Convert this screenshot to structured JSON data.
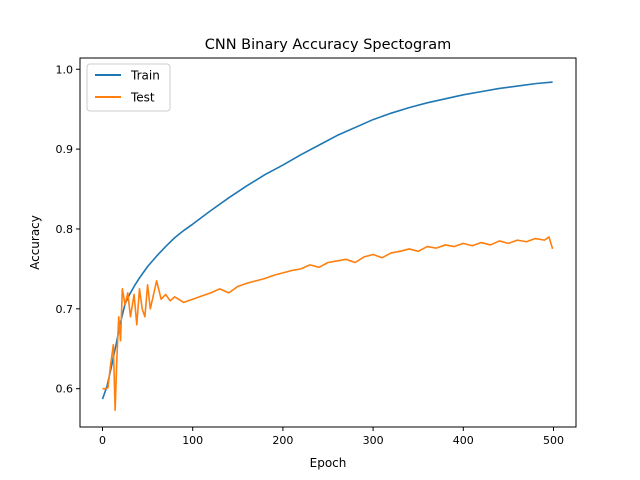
{
  "chart_data": {
    "type": "line",
    "title": "CNN Binary Accuracy Spectogram",
    "xlabel": "Epoch",
    "ylabel": "Accuracy",
    "xlim": [
      -24.95,
      524.95
    ],
    "ylim": [
      0.552,
      1.0141
    ],
    "xticks": [
      0,
      100,
      200,
      300,
      400,
      500
    ],
    "yticks": [
      0.6,
      0.7,
      0.8,
      0.9,
      1.0
    ],
    "ytick_labels": [
      "0.6",
      "0.7",
      "0.8",
      "0.9",
      "1.0"
    ],
    "grid": false,
    "legend_position": "top-left",
    "series": [
      {
        "name": "Train",
        "color": "#1f77b4",
        "x": [
          0,
          5,
          10,
          15,
          20,
          25,
          30,
          35,
          40,
          45,
          50,
          60,
          70,
          80,
          90,
          100,
          120,
          140,
          160,
          180,
          200,
          220,
          240,
          260,
          280,
          300,
          320,
          340,
          360,
          380,
          400,
          420,
          440,
          460,
          480,
          499
        ],
        "y": [
          0.587,
          0.603,
          0.628,
          0.655,
          0.683,
          0.706,
          0.718,
          0.728,
          0.737,
          0.745,
          0.753,
          0.766,
          0.778,
          0.789,
          0.798,
          0.806,
          0.823,
          0.839,
          0.854,
          0.868,
          0.88,
          0.893,
          0.905,
          0.917,
          0.927,
          0.937,
          0.945,
          0.952,
          0.958,
          0.963,
          0.968,
          0.972,
          0.976,
          0.979,
          0.982,
          0.984
        ]
      },
      {
        "name": "Test",
        "color": "#ff7f0e",
        "x": [
          0,
          3,
          6,
          9,
          12,
          14,
          16,
          18,
          20,
          22,
          25,
          28,
          31,
          35,
          38,
          41,
          44,
          47,
          50,
          53,
          56,
          60,
          65,
          70,
          75,
          80,
          90,
          100,
          110,
          120,
          130,
          140,
          150,
          160,
          170,
          180,
          190,
          200,
          210,
          220,
          230,
          240,
          250,
          260,
          270,
          280,
          290,
          300,
          310,
          320,
          330,
          340,
          350,
          360,
          370,
          380,
          390,
          400,
          410,
          420,
          430,
          440,
          450,
          460,
          470,
          480,
          490,
          495,
          499
        ],
        "y": [
          0.6,
          0.6,
          0.601,
          0.63,
          0.655,
          0.573,
          0.64,
          0.69,
          0.66,
          0.725,
          0.705,
          0.72,
          0.69,
          0.718,
          0.68,
          0.725,
          0.7,
          0.69,
          0.73,
          0.7,
          0.715,
          0.735,
          0.712,
          0.718,
          0.71,
          0.715,
          0.708,
          0.712,
          0.716,
          0.72,
          0.725,
          0.72,
          0.728,
          0.732,
          0.735,
          0.738,
          0.742,
          0.745,
          0.748,
          0.75,
          0.755,
          0.752,
          0.758,
          0.76,
          0.762,
          0.758,
          0.765,
          0.768,
          0.764,
          0.77,
          0.772,
          0.775,
          0.772,
          0.778,
          0.776,
          0.78,
          0.778,
          0.782,
          0.779,
          0.783,
          0.78,
          0.785,
          0.782,
          0.786,
          0.784,
          0.788,
          0.786,
          0.79,
          0.775
        ]
      }
    ]
  }
}
